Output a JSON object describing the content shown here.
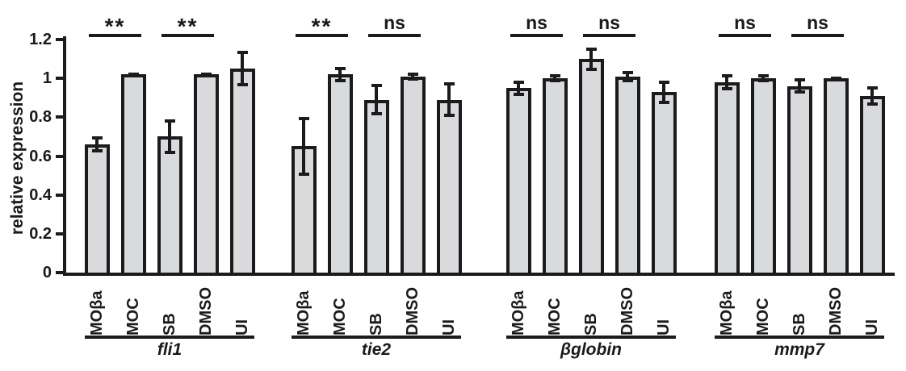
{
  "colors": {
    "bar_fill": "#d9dadb",
    "bar_border": "#1b1b1d",
    "ink": "#1a1a1a"
  },
  "chart_data": {
    "type": "bar",
    "title": "",
    "xlabel": "",
    "ylabel": "relative expression",
    "ylim": [
      0,
      1.2
    ],
    "grid": false,
    "legend": false,
    "yticks": [
      {
        "value": 1.2,
        "label": "1.2"
      },
      {
        "value": 1.0,
        "label": "1"
      },
      {
        "value": 0.8,
        "label": "0.8"
      },
      {
        "value": 0.6,
        "label": "0.6"
      },
      {
        "value": 0.4,
        "label": "0.4"
      },
      {
        "value": 0.2,
        "label": "0.2"
      },
      {
        "value": 0,
        "label": "0"
      }
    ],
    "categories": [
      "MOβa",
      "MOC",
      "SB",
      "DMSO",
      "UI"
    ],
    "groups": [
      {
        "name": "fli1",
        "values": [
          0.66,
          1.02,
          0.7,
          1.02,
          1.05
        ],
        "errors": [
          0.04,
          0.01,
          0.09,
          0.01,
          0.09
        ],
        "significance": [
          {
            "bars": [
              0,
              1
            ],
            "label": "**"
          },
          {
            "bars": [
              2,
              3
            ],
            "label": "**"
          }
        ]
      },
      {
        "name": "tie2",
        "values": [
          0.65,
          1.02,
          0.89,
          1.01,
          0.89
        ],
        "errors": [
          0.15,
          0.04,
          0.08,
          0.02,
          0.09
        ],
        "significance": [
          {
            "bars": [
              0,
              1
            ],
            "label": "**"
          },
          {
            "bars": [
              2,
              3
            ],
            "label": "ns"
          }
        ]
      },
      {
        "name": "βglobin",
        "values": [
          0.95,
          1.0,
          1.1,
          1.01,
          0.93
        ],
        "errors": [
          0.04,
          0.02,
          0.06,
          0.03,
          0.06
        ],
        "significance": [
          {
            "bars": [
              0,
              1
            ],
            "label": "ns"
          },
          {
            "bars": [
              2,
              3
            ],
            "label": "ns"
          }
        ]
      },
      {
        "name": "mmp7",
        "values": [
          0.98,
          1.0,
          0.96,
          1.0,
          0.91
        ],
        "errors": [
          0.04,
          0.02,
          0.04,
          0.01,
          0.05
        ],
        "significance": [
          {
            "bars": [
              0,
              1
            ],
            "label": "ns"
          },
          {
            "bars": [
              2,
              3
            ],
            "label": "ns"
          }
        ]
      }
    ]
  }
}
